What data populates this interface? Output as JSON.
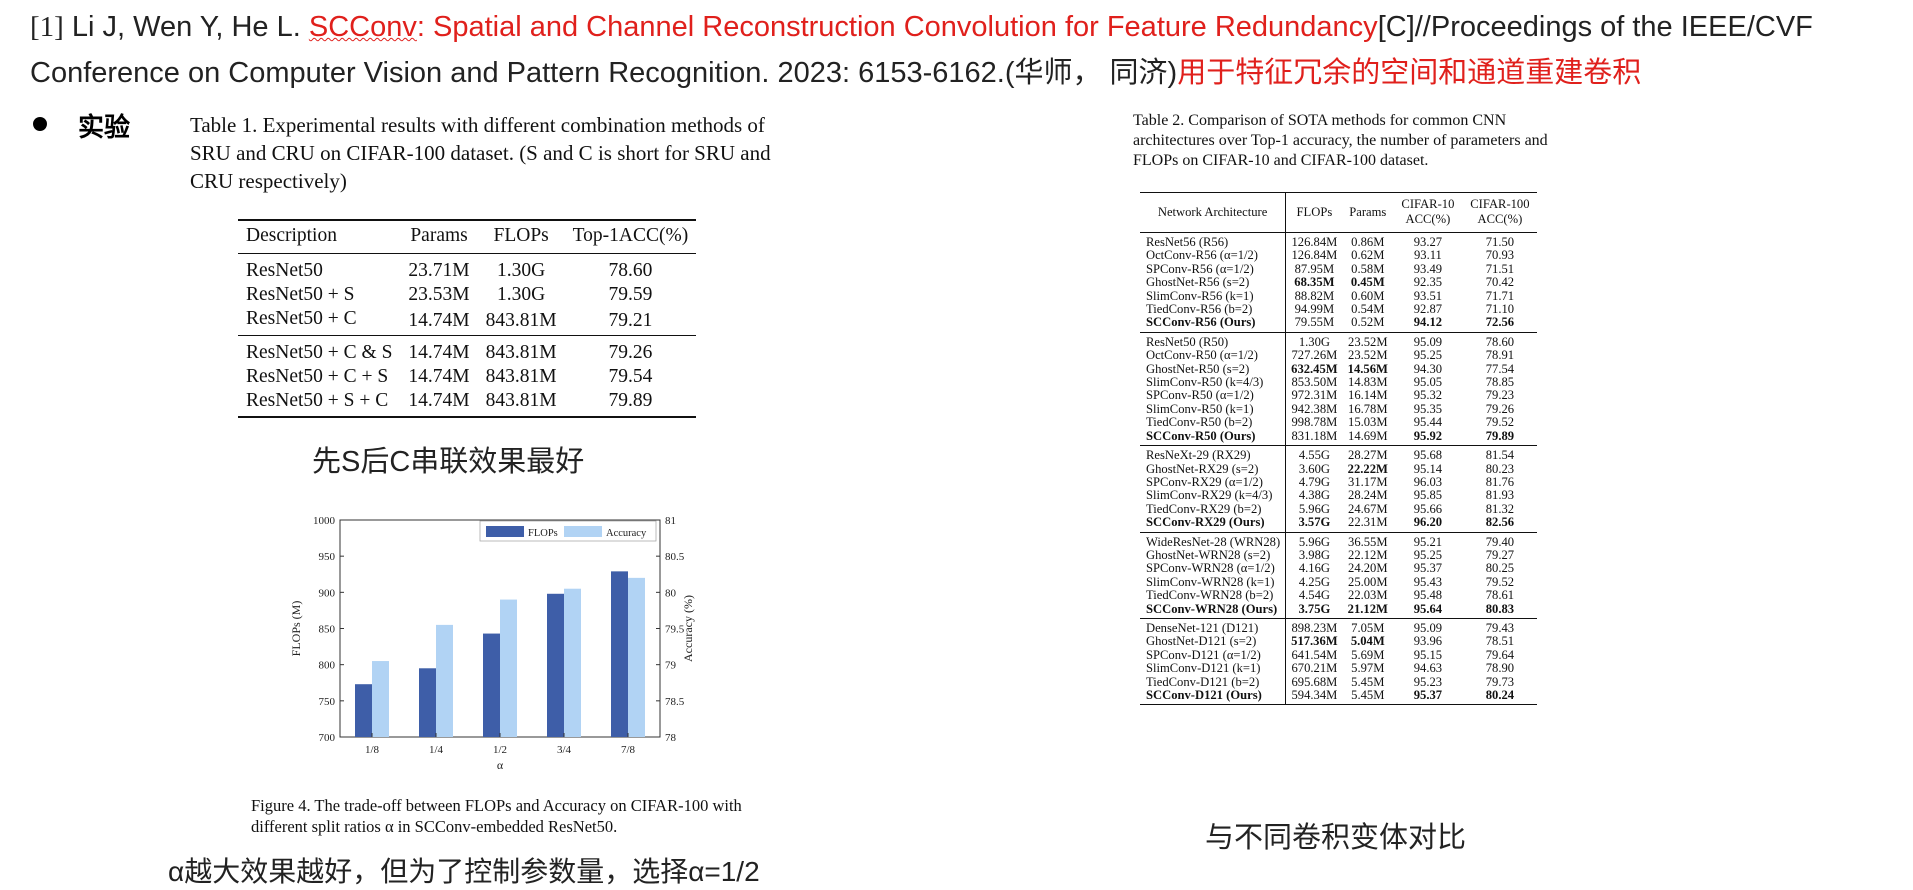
{
  "reference": {
    "index": "[1]",
    "authors": "Li J, Wen Y, He L.",
    "title_underlined": "SCConv",
    "title_rest": ": Spatial and Channel Reconstruction Convolution for Feature Redundancy",
    "venue_line1": "[C]//Proceedings of the IEEE/CVF",
    "venue_line2": "Conference on Computer Vision and Pattern Recognition. 2023: 6153-6162.(华师， 同济)",
    "chinese_title": "用于特征冗余的空间和通道重建卷积"
  },
  "section_title": "实验",
  "table1": {
    "caption": "Table 1. Experimental results with different combination methods of SRU and CRU on CIFAR-100 dataset.  (S and C is short for SRU and CRU respectively)",
    "headers": [
      "Description",
      "Params",
      "FLOPs",
      "Top-1ACC(%)"
    ],
    "rows": [
      [
        "ResNet50",
        "23.71M",
        "1.30G",
        "78.60"
      ],
      [
        "ResNet50 + S",
        "23.53M",
        "1.30G",
        "79.59"
      ],
      [
        "ResNet50 + C",
        "14.74M",
        "843.81M",
        "79.21"
      ],
      [
        "ResNet50 + C & S",
        "14.74M",
        "843.81M",
        "79.26"
      ],
      [
        "ResNet50 + C + S",
        "14.74M",
        "843.81M",
        "79.54"
      ],
      [
        "ResNet50 + S + C",
        "14.74M",
        "843.81M",
        "79.89"
      ]
    ]
  },
  "note_table1": "先S后C串联效果最好",
  "chart_data": {
    "type": "bar",
    "categories": [
      "1/8",
      "1/4",
      "1/2",
      "3/4",
      "7/8"
    ],
    "series": [
      {
        "name": "FLOPs",
        "axis": "left",
        "color": "#3e5ea8",
        "values": [
          773,
          795,
          843,
          898,
          929
        ]
      },
      {
        "name": "Accuracy",
        "axis": "right",
        "color": "#b1d3f4",
        "values": [
          79.05,
          79.55,
          79.9,
          80.05,
          80.2
        ]
      }
    ],
    "xlabel": "α",
    "ylabel_left": "FLOPs (M)",
    "ylabel_right": "Accuracy (%)",
    "ylim_left": [
      700,
      1000
    ],
    "yticks_left": [
      "700",
      "750",
      "800",
      "850",
      "900",
      "950",
      "1000"
    ],
    "ylim_right": [
      78,
      81
    ],
    "yticks_right": [
      "78",
      "78.5",
      "79",
      "79.5",
      "80",
      "80.5",
      "81"
    ],
    "legend_position": "top-right",
    "grid": false
  },
  "figure_caption": "Figure 4. The trade-off between FLOPs and Accuracy on CIFAR-100 with different split ratios α in SCConv-embedded ResNet50.",
  "note_figure": "α越大效果越好，但为了控制参数量，选择α=1/2",
  "table2": {
    "caption": "Table 2.  Comparison of SOTA methods for common CNN architectures over Top-1 accuracy, the number of parameters and FLOPs on CIFAR-10 and CIFAR-100 dataset.",
    "headers": [
      "Network Architecture",
      "FLOPs",
      "Params",
      "CIFAR-10 ACC(%)",
      "CIFAR-100 ACC(%)"
    ],
    "groups": [
      [
        {
          "cells": [
            "ResNet56 (R56)",
            "126.84M",
            "0.86M",
            "93.27",
            "71.50"
          ],
          "bold": []
        },
        {
          "cells": [
            "OctConv-R56 (α=1/2)",
            "126.84M",
            "0.62M",
            "93.11",
            "70.93"
          ],
          "bold": []
        },
        {
          "cells": [
            "SPConv-R56 (α=1/2)",
            "87.95M",
            "0.58M",
            "93.49",
            "71.51"
          ],
          "bold": []
        },
        {
          "cells": [
            "GhostNet-R56 (s=2)",
            "68.35M",
            "0.45M",
            "92.35",
            "70.42"
          ],
          "bold": [
            1,
            2
          ]
        },
        {
          "cells": [
            "SlimConv-R56 (k=1)",
            "88.82M",
            "0.60M",
            "93.51",
            "71.71"
          ],
          "bold": []
        },
        {
          "cells": [
            "TiedConv-R56 (b=2)",
            "94.99M",
            "0.54M",
            "92.87",
            "71.10"
          ],
          "bold": []
        },
        {
          "cells": [
            "SCConv-R56 (Ours)",
            "79.55M",
            "0.52M",
            "94.12",
            "72.56"
          ],
          "bold": [
            0,
            3,
            4
          ]
        }
      ],
      [
        {
          "cells": [
            "ResNet50 (R50)",
            "1.30G",
            "23.52M",
            "95.09",
            "78.60"
          ],
          "bold": []
        },
        {
          "cells": [
            "OctConv-R50 (α=1/2)",
            "727.26M",
            "23.52M",
            "95.25",
            "78.91"
          ],
          "bold": []
        },
        {
          "cells": [
            "GhostNet-R50 (s=2)",
            "632.45M",
            "14.56M",
            "94.30",
            "77.54"
          ],
          "bold": [
            1,
            2
          ]
        },
        {
          "cells": [
            "SlimConv-R50 (k=4/3)",
            "853.50M",
            "14.83M",
            "95.05",
            "78.85"
          ],
          "bold": []
        },
        {
          "cells": [
            "SPConv-R50 (α=1/2)",
            "972.31M",
            "16.14M",
            "95.32",
            "79.23"
          ],
          "bold": []
        },
        {
          "cells": [
            "SlimConv-R50 (k=1)",
            "942.38M",
            "16.78M",
            "95.35",
            "79.26"
          ],
          "bold": []
        },
        {
          "cells": [
            "TiedConv-R50 (b=2)",
            "998.78M",
            "15.03M",
            "95.44",
            "79.52"
          ],
          "bold": []
        },
        {
          "cells": [
            "SCConv-R50 (Ours)",
            "831.18M",
            "14.69M",
            "95.92",
            "79.89"
          ],
          "bold": [
            0,
            3,
            4
          ]
        }
      ],
      [
        {
          "cells": [
            "ResNeXt-29 (RX29)",
            "4.55G",
            "28.27M",
            "95.68",
            "81.54"
          ],
          "bold": []
        },
        {
          "cells": [
            "GhostNet-RX29 (s=2)",
            "3.60G",
            "22.22M",
            "95.14",
            "80.23"
          ],
          "bold": [
            2
          ]
        },
        {
          "cells": [
            "SPConv-RX29 (α=1/2)",
            "4.79G",
            "31.17M",
            "96.03",
            "81.76"
          ],
          "bold": []
        },
        {
          "cells": [
            "SlimConv-RX29 (k=4/3)",
            "4.38G",
            "28.24M",
            "95.85",
            "81.93"
          ],
          "bold": []
        },
        {
          "cells": [
            "TiedConv-RX29 (b=2)",
            "5.96G",
            "24.67M",
            "95.66",
            "81.32"
          ],
          "bold": []
        },
        {
          "cells": [
            "SCConv-RX29 (Ours)",
            "3.57G",
            "22.31M",
            "96.20",
            "82.56"
          ],
          "bold": [
            0,
            1,
            3,
            4
          ]
        }
      ],
      [
        {
          "cells": [
            "WideResNet-28 (WRN28)",
            "5.96G",
            "36.55M",
            "95.21",
            "79.40"
          ],
          "bold": []
        },
        {
          "cells": [
            "GhostNet-WRN28 (s=2)",
            "3.98G",
            "22.12M",
            "95.25",
            "79.27"
          ],
          "bold": []
        },
        {
          "cells": [
            "SPConv-WRN28 (α=1/2)",
            "4.16G",
            "24.20M",
            "95.37",
            "80.25"
          ],
          "bold": []
        },
        {
          "cells": [
            "SlimConv-WRN28 (k=1)",
            "4.25G",
            "25.00M",
            "95.43",
            "79.52"
          ],
          "bold": []
        },
        {
          "cells": [
            "TiedConv-WRN28 (b=2)",
            "4.54G",
            "22.03M",
            "95.48",
            "78.61"
          ],
          "bold": []
        },
        {
          "cells": [
            "SCConv-WRN28 (Ours)",
            "3.75G",
            "21.12M",
            "95.64",
            "80.83"
          ],
          "bold": [
            0,
            1,
            2,
            3,
            4
          ]
        }
      ],
      [
        {
          "cells": [
            "DenseNet-121 (D121)",
            "898.23M",
            "7.05M",
            "95.09",
            "79.43"
          ],
          "bold": []
        },
        {
          "cells": [
            "GhostNet-D121 (s=2)",
            "517.36M",
            "5.04M",
            "93.96",
            "78.51"
          ],
          "bold": [
            1,
            2
          ]
        },
        {
          "cells": [
            "SPConv-D121 (α=1/2)",
            "641.54M",
            "5.69M",
            "95.15",
            "79.64"
          ],
          "bold": []
        },
        {
          "cells": [
            "SlimConv-D121 (k=1)",
            "670.21M",
            "5.97M",
            "94.63",
            "78.90"
          ],
          "bold": []
        },
        {
          "cells": [
            "TiedConv-D121 (b=2)",
            "695.68M",
            "5.45M",
            "95.23",
            "79.73"
          ],
          "bold": []
        },
        {
          "cells": [
            "SCConv-D121 (Ours)",
            "594.34M",
            "5.45M",
            "95.37",
            "80.24"
          ],
          "bold": [
            0,
            3,
            4
          ]
        }
      ]
    ]
  },
  "note_table2": "与不同卷积变体对比"
}
